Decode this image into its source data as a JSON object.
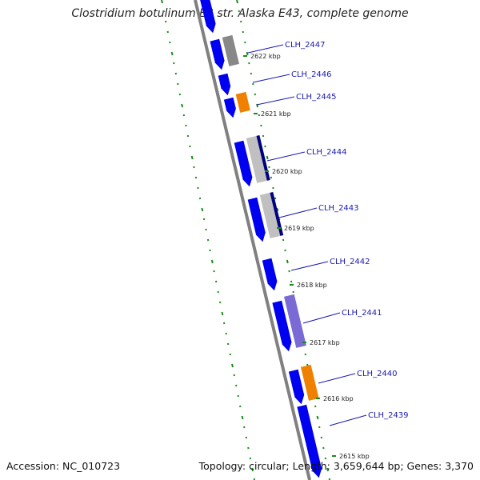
{
  "title": "Clostridium botulinum E3 str. Alaska E43, complete genome",
  "footer": {
    "accession": "Accession: NC_010723",
    "summary": "Topology: circular; Length: 3,659,644 bp; Genes: 3,370"
  },
  "colors": {
    "backbone": "#808080",
    "forward_cds": "#0000f0",
    "gene_grey": "#888888",
    "gene_light_grey": "#c0c0c0",
    "gene_orange": "#f08000",
    "gene_purple": "#7a6ad6",
    "gene_navy": "#000080",
    "gc_dots": "#1b8a1b",
    "label_line": "#1a1ab0"
  },
  "genes": [
    {
      "label": "CLH_2447"
    },
    {
      "label": "CLH_2446"
    },
    {
      "label": "CLH_2445"
    },
    {
      "label": "CLH_2444"
    },
    {
      "label": "CLH_2443"
    },
    {
      "label": "CLH_2442"
    },
    {
      "label": "CLH_2441"
    },
    {
      "label": "CLH_2440"
    },
    {
      "label": "CLH_2439"
    }
  ],
  "kbp_ticks": [
    {
      "label": "2622 kbp"
    },
    {
      "label": "2621 kbp"
    },
    {
      "label": "2620 kbp"
    },
    {
      "label": "2619 kbp"
    },
    {
      "label": "2618 kbp"
    },
    {
      "label": "2617 kbp"
    },
    {
      "label": "2616 kbp"
    },
    {
      "label": "2615 kbp"
    }
  ]
}
